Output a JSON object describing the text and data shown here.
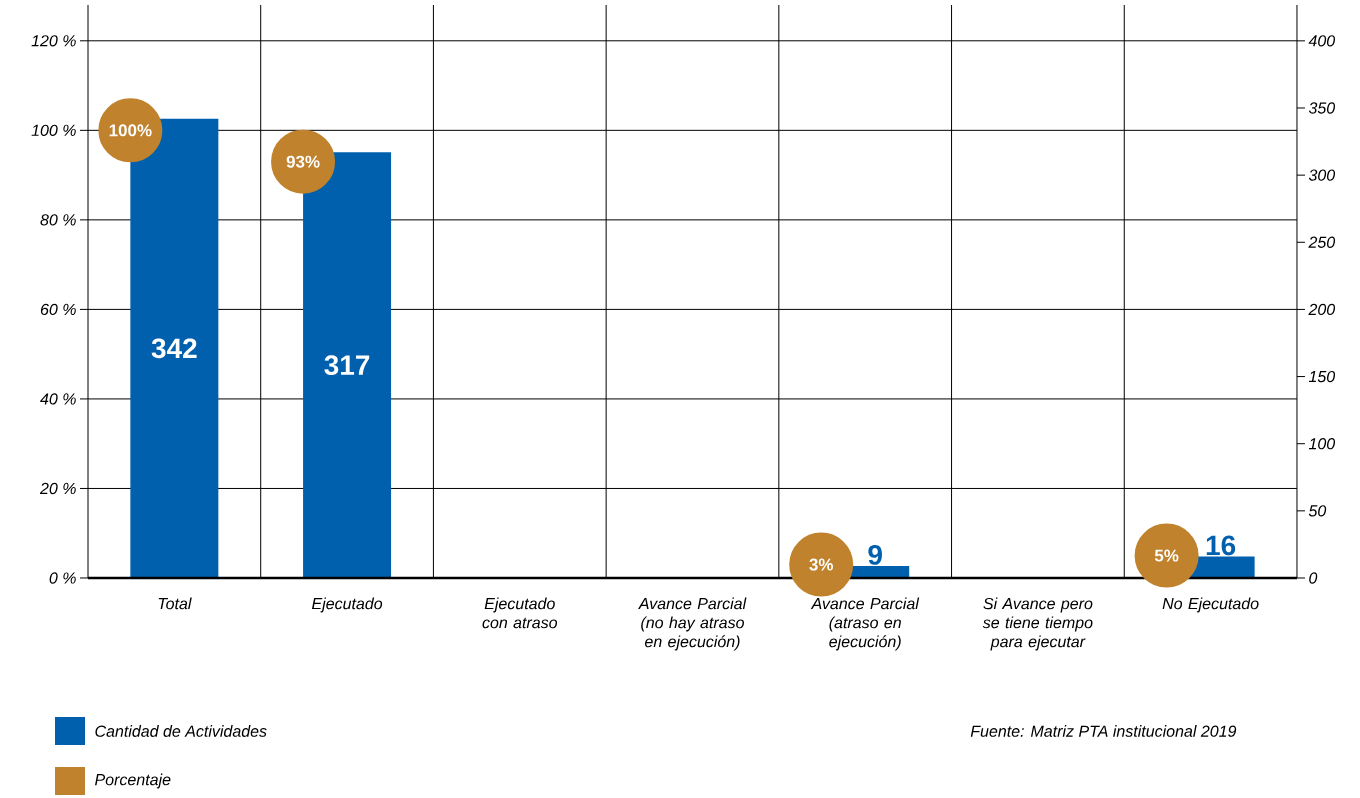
{
  "chart_data": {
    "type": "bar",
    "categories": [
      "Total",
      "Ejecutado",
      "Ejecutado con atraso",
      "Avance Parcial (no hay atraso en ejecución)",
      "Avance Parcial (atraso en ejecución)",
      "Si Avance pero se tiene tiempo para ejecutar",
      "No Ejecutado"
    ],
    "series": [
      {
        "name": "Cantidad de Actividades",
        "type": "bar",
        "axis": "y2",
        "color": "#0060ae",
        "values": [
          342,
          317,
          null,
          null,
          9,
          null,
          16
        ],
        "value_labels": [
          "342",
          "317",
          null,
          null,
          "9",
          null,
          "16"
        ]
      },
      {
        "name": "Porcentaje",
        "type": "scatter",
        "axis": "y",
        "color": "#c0822c",
        "values": [
          100,
          93,
          null,
          null,
          3,
          null,
          5
        ],
        "value_labels": [
          "100%",
          "93%",
          null,
          null,
          "3%",
          null,
          "5%"
        ]
      }
    ],
    "ylim": [
      0,
      128
    ],
    "yticks": [
      {
        "value": 0,
        "label": "0 %"
      },
      {
        "value": 20,
        "label": "20 %"
      },
      {
        "value": 40,
        "label": "40 %"
      },
      {
        "value": 60,
        "label": "60 %"
      },
      {
        "value": 80,
        "label": "80 %"
      },
      {
        "value": 100,
        "label": "100 %"
      },
      {
        "value": 120,
        "label": "120 %"
      }
    ],
    "y2lim": [
      0,
      426.7
    ],
    "y2ticks": [
      0,
      50,
      100,
      150,
      200,
      250,
      300,
      350,
      400
    ],
    "grid": true,
    "legend": "bottom left",
    "annotations": [
      "Fuente: Matriz PTA institucional 2019"
    ]
  }
}
